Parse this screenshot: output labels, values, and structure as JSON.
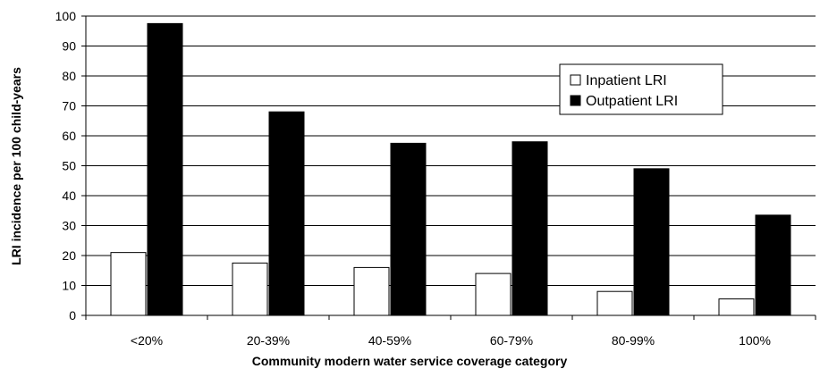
{
  "chart_data": {
    "type": "bar",
    "xlabel": "Community modern water service coverage category",
    "ylabel": "LRI incidence per 100 child-years",
    "ylim": [
      0,
      100
    ],
    "yticks": [
      0,
      10,
      20,
      30,
      40,
      50,
      60,
      70,
      80,
      90,
      100
    ],
    "grid": true,
    "legend_position": "top-right",
    "categories": [
      "<20%",
      "20-39%",
      "40-59%",
      "60-79%",
      "80-99%",
      "100%"
    ],
    "series": [
      {
        "name": "Inpatient LRI",
        "color": "#ffffff",
        "values": [
          21,
          17.5,
          16,
          14,
          8,
          5.5
        ]
      },
      {
        "name": "Outpatient LRI",
        "color": "#000000",
        "values": [
          97.5,
          68,
          57.5,
          58,
          49,
          33.5
        ]
      }
    ]
  }
}
